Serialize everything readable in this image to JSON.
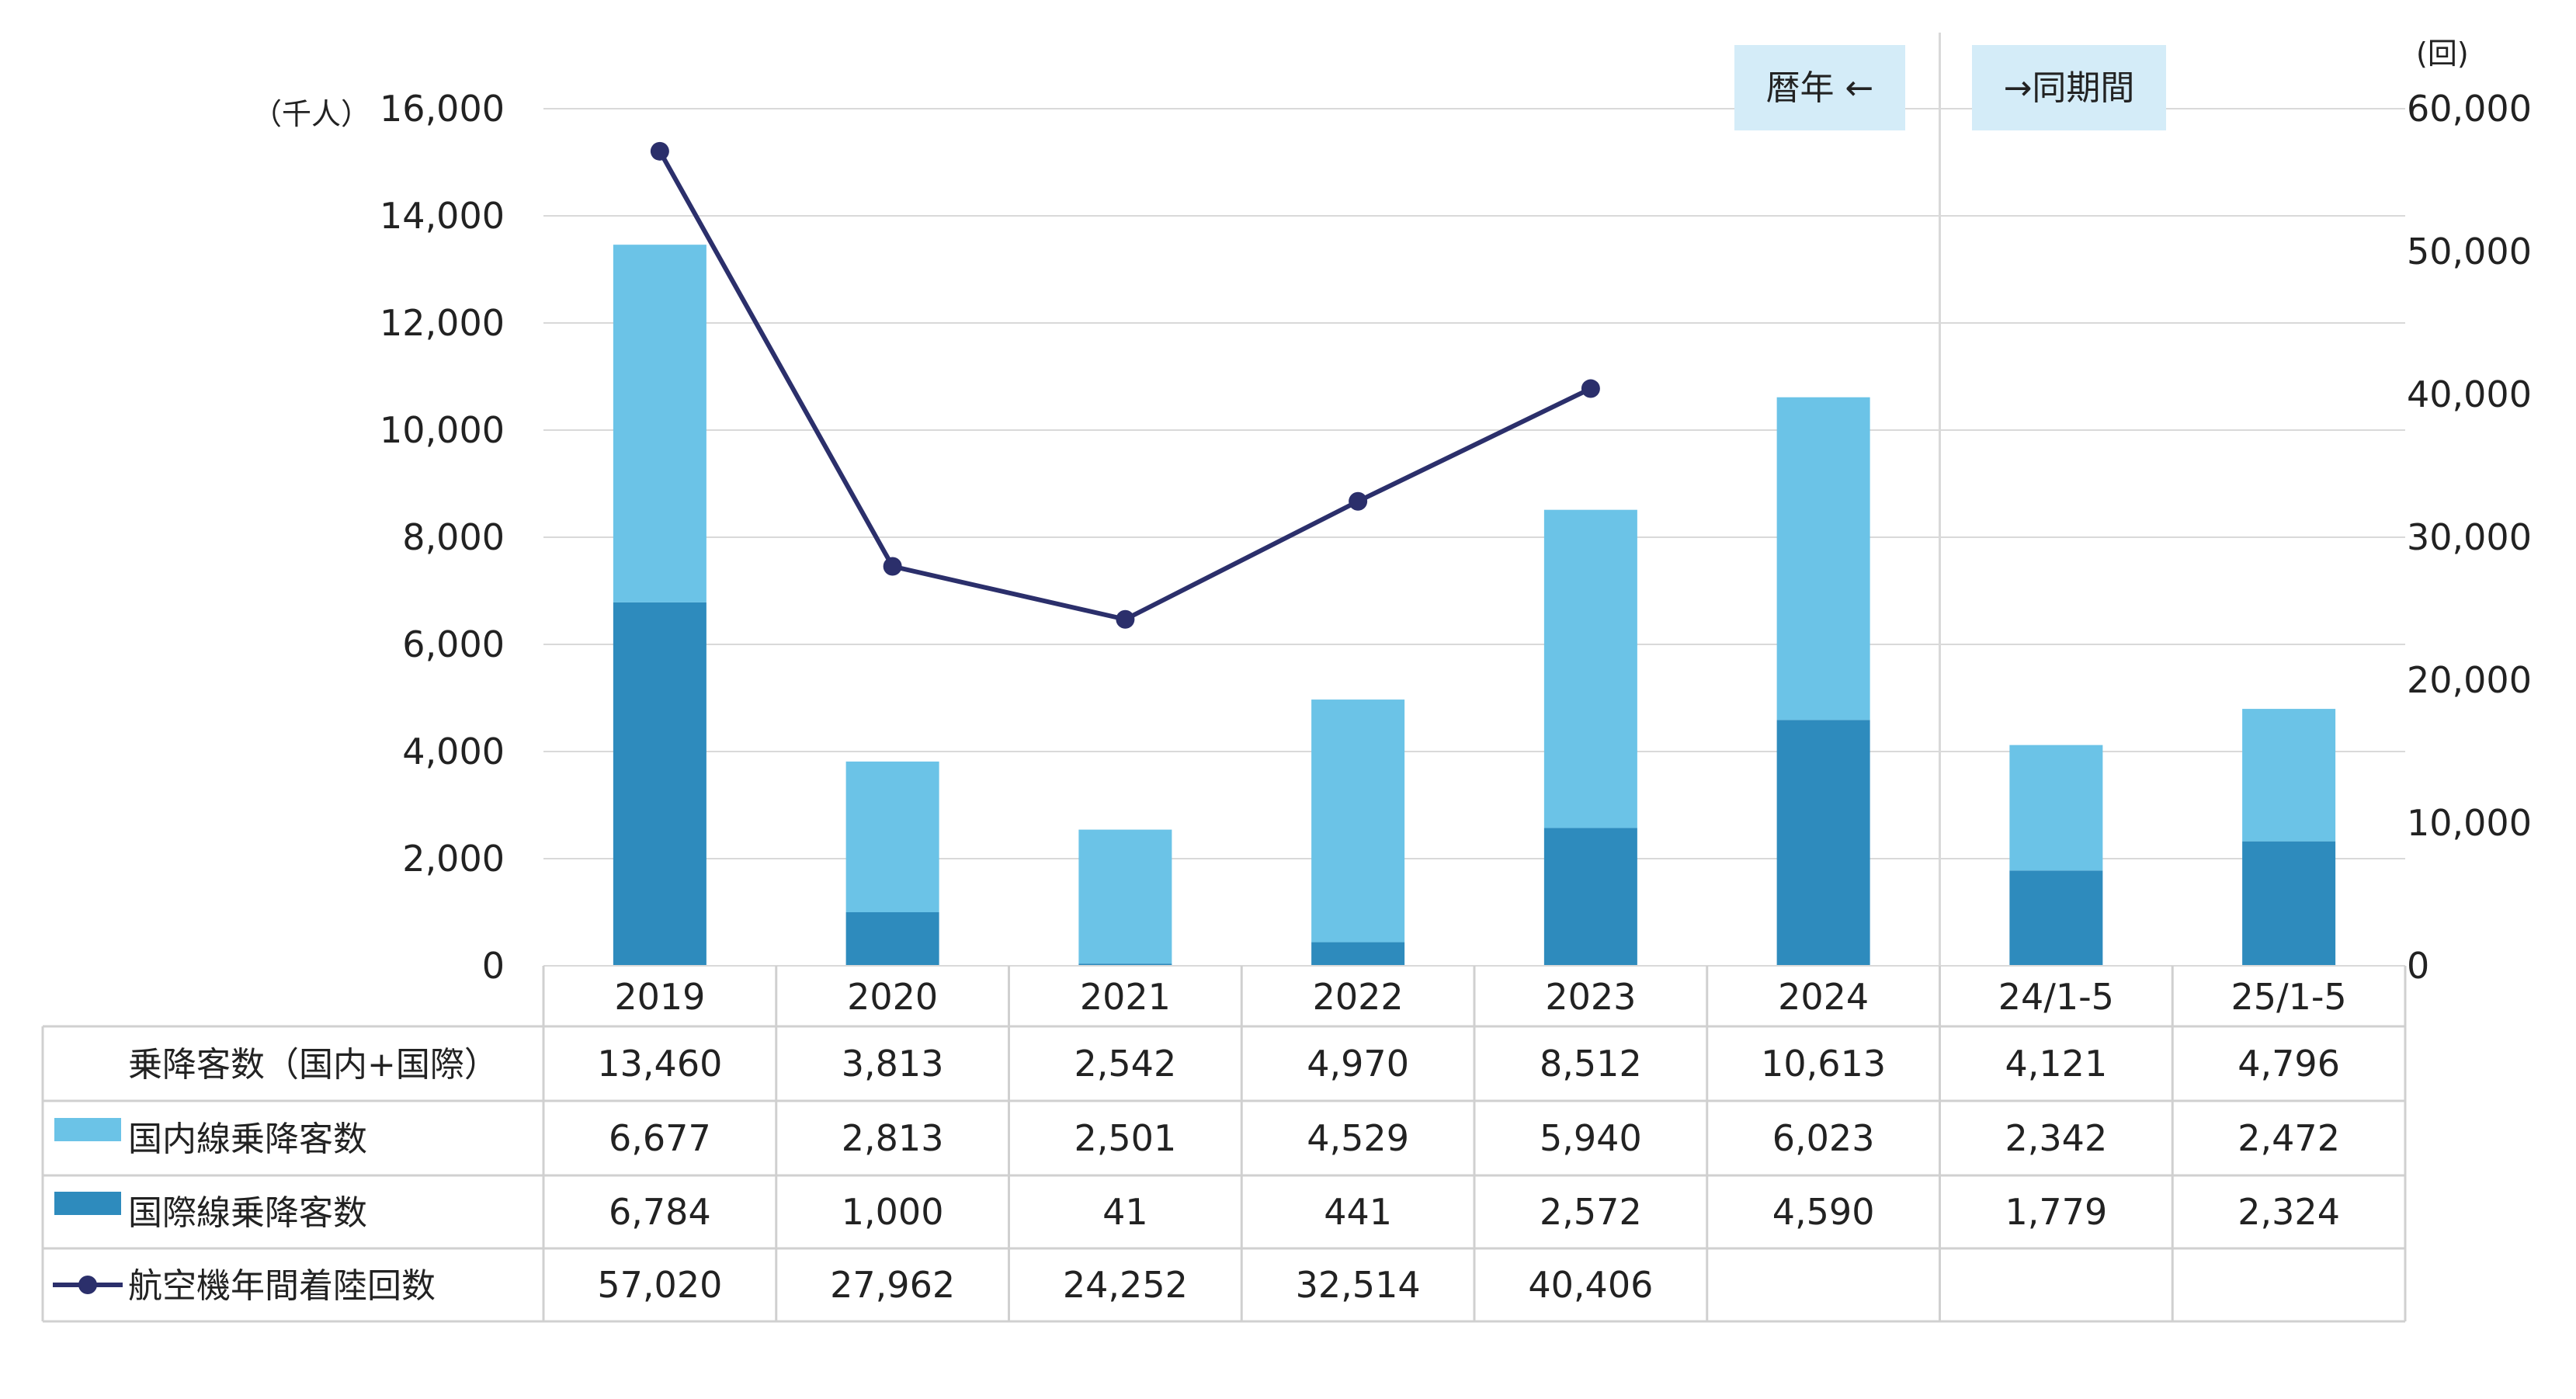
{
  "chart_data": {
    "type": "bar",
    "stacked": true,
    "categories": [
      "2019",
      "2020",
      "2021",
      "2022",
      "2023",
      "2024",
      "24/1-5",
      "25/1-5"
    ],
    "series": [
      {
        "name": "国際線乗降客数",
        "type": "bar",
        "axis": "left",
        "color": "#2e8bbd",
        "values": [
          6784,
          1000,
          41,
          441,
          2572,
          4590,
          1779,
          2324
        ],
        "labels": [
          "6,784",
          "1,000",
          "41",
          "441",
          "2,572",
          "4,590",
          "1,779",
          "2,324"
        ]
      },
      {
        "name": "国内線乗降客数",
        "type": "bar",
        "axis": "left",
        "color": "#6bc3e7",
        "values": [
          6677,
          2813,
          2501,
          4529,
          5940,
          6023,
          2342,
          2472
        ],
        "labels": [
          "6,677",
          "2,813",
          "2,501",
          "4,529",
          "5,940",
          "6,023",
          "2,342",
          "2,472"
        ]
      },
      {
        "name": "航空機年間着陸回数",
        "type": "line",
        "axis": "right",
        "color": "#2b2f6b",
        "values": [
          57020,
          27962,
          24252,
          32514,
          40406,
          null,
          null,
          null
        ],
        "labels": [
          "57,020",
          "27,962",
          "24,252",
          "32,514",
          "40,406",
          "",
          "",
          ""
        ]
      }
    ],
    "total_row": {
      "name": "乗降客数（国内+国際）",
      "labels": [
        "13,460",
        "3,813",
        "2,542",
        "4,970",
        "8,512",
        "10,613",
        "4,121",
        "4,796"
      ]
    },
    "y_left": {
      "unit": "（千人）",
      "ylim": [
        0,
        16000
      ],
      "ticks": [
        0,
        2000,
        4000,
        6000,
        8000,
        10000,
        12000,
        14000,
        16000
      ],
      "tick_labels": [
        "0",
        "2,000",
        "4,000",
        "6,000",
        "8,000",
        "10,000",
        "12,000",
        "14,000",
        "16,000"
      ]
    },
    "y_right": {
      "unit": "(回)",
      "ylim": [
        0,
        60000
      ],
      "ticks": [
        0,
        10000,
        20000,
        30000,
        40000,
        50000,
        60000
      ],
      "tick_labels": [
        "0",
        "10,000",
        "20,000",
        "30,000",
        "40,000",
        "50,000",
        "60,000"
      ]
    },
    "annotations": [
      "暦年 ←",
      "→同期間"
    ],
    "grid": true,
    "legend_placement": "table-left"
  },
  "colors": {
    "domestic": "#6bc3e7",
    "international": "#2e8bbd",
    "line": "#2b2f6b",
    "annotation_bg": "#d4ecf8",
    "grid": "#d9d9d9"
  }
}
